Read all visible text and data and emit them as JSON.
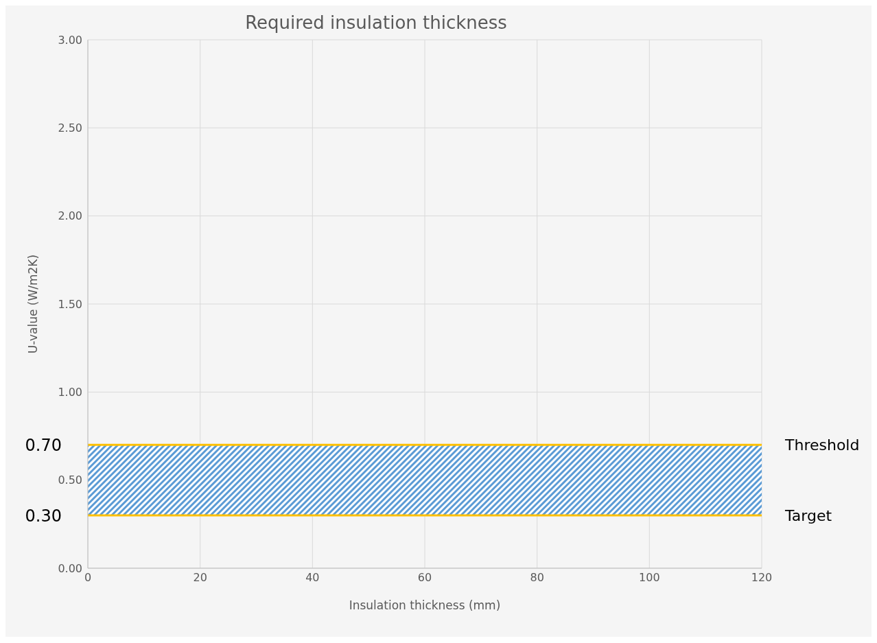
{
  "chart_data": {
    "type": "line",
    "title": "Required insulation thickness",
    "xlabel": "Insulation thickness (mm)",
    "ylabel": "U-value (W/m2K)",
    "xlim": [
      0,
      120
    ],
    "xticks": [
      0,
      20,
      40,
      60,
      80,
      100,
      120
    ],
    "ylim": [
      0,
      3
    ],
    "yticks": [
      {
        "value": 0,
        "label": "0.00"
      },
      {
        "value": 0.5,
        "label": "0.50"
      },
      {
        "value": 1,
        "label": "1.00"
      },
      {
        "value": 1.5,
        "label": "1.50"
      },
      {
        "value": 2,
        "label": "2.00"
      },
      {
        "value": 2.5,
        "label": "2.50"
      },
      {
        "value": 3,
        "label": "3.00"
      }
    ],
    "grid": true,
    "bands": [
      {
        "axis": "y",
        "from": 0.3,
        "to": 0.7,
        "color": "#5b9bd5"
      }
    ],
    "ref_lines": [
      {
        "axis": "y",
        "value": 0.7,
        "label": "Threshold",
        "color": "#ffc000"
      },
      {
        "axis": "y",
        "value": 0.3,
        "label": "Target",
        "color": "#ffc000"
      }
    ],
    "annotations": [
      {
        "text": "0.70",
        "x": 0,
        "y": 0.7
      },
      {
        "text": "0.30",
        "x": 0,
        "y": 0.3
      }
    ]
  }
}
